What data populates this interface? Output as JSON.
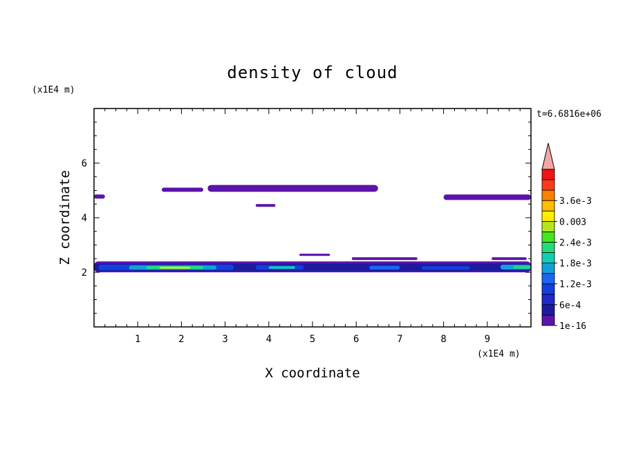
{
  "chart_data": {
    "type": "heatmap",
    "title": "density of cloud",
    "xlabel": "X coordinate",
    "ylabel": "Z coordinate",
    "x_unit": "(x1E4 m)",
    "y_unit": "(x1E4 m)",
    "time_label": "t=6.6816e+06",
    "xlim": [
      0,
      10
    ],
    "ylim": [
      0,
      8
    ],
    "x_ticks": [
      1,
      2,
      3,
      4,
      5,
      6,
      7,
      8,
      9
    ],
    "y_ticks": [
      2,
      4,
      6
    ],
    "grid": false,
    "colorbar": {
      "placement": "right",
      "extend": "max",
      "tick_labels": [
        "1e-16",
        "6e-4",
        "1.2e-3",
        "1.8e-3",
        "2.4e-3",
        "0.003",
        "3.6e-3"
      ],
      "tick_values": [
        1e-16,
        0.0006,
        0.0012,
        0.0018,
        0.0024,
        0.003,
        0.0036
      ],
      "levels": [
        1e-16,
        0.0003,
        0.0006,
        0.0009,
        0.0012,
        0.0015,
        0.0018,
        0.0021,
        0.0024,
        0.0027,
        0.003,
        0.0033,
        0.0036,
        0.0039
      ],
      "colors": [
        "#5a14aa",
        "#1e1aa0",
        "#1f2ac8",
        "#1240e0",
        "#1a66f0",
        "#12a0d8",
        "#12cfb4",
        "#22dc78",
        "#44e61c",
        "#b6e61a",
        "#ffee00",
        "#ffbe00",
        "#ff8000",
        "#ff3a1a",
        "#ee1515"
      ],
      "over_color": "#f4a6a6"
    },
    "regions": [
      {
        "x": [
          0.0,
          0.25
        ],
        "z": [
          4.7,
          4.85
        ],
        "level": 0
      },
      {
        "x": [
          1.55,
          2.5
        ],
        "z": [
          4.95,
          5.1
        ],
        "level": 0
      },
      {
        "x": [
          2.6,
          6.5
        ],
        "z": [
          4.95,
          5.2
        ],
        "level": 0
      },
      {
        "x": [
          3.7,
          4.15
        ],
        "z": [
          4.4,
          4.5
        ],
        "level": 0
      },
      {
        "x": [
          8.0,
          10.0
        ],
        "z": [
          4.65,
          4.85
        ],
        "level": 0
      },
      {
        "x": [
          4.7,
          5.4
        ],
        "z": [
          2.6,
          2.68
        ],
        "level": 0
      },
      {
        "x": [
          5.9,
          7.4
        ],
        "z": [
          2.45,
          2.55
        ],
        "level": 0
      },
      {
        "x": [
          9.1,
          9.9
        ],
        "z": [
          2.45,
          2.55
        ],
        "level": 0
      },
      {
        "x": [
          0.0,
          10.0
        ],
        "z": [
          2.0,
          2.4
        ],
        "level": 0
      },
      {
        "x": [
          0.0,
          10.0
        ],
        "z": [
          2.05,
          2.32
        ],
        "level": 1
      },
      {
        "x": [
          0.1,
          3.2
        ],
        "z": [
          2.08,
          2.28
        ],
        "level": 3
      },
      {
        "x": [
          0.8,
          2.8
        ],
        "z": [
          2.1,
          2.25
        ],
        "level": 5
      },
      {
        "x": [
          1.2,
          2.5
        ],
        "z": [
          2.12,
          2.23
        ],
        "level": 7
      },
      {
        "x": [
          1.5,
          2.2
        ],
        "z": [
          2.14,
          2.2
        ],
        "level": 10
      },
      {
        "x": [
          3.7,
          4.8
        ],
        "z": [
          2.1,
          2.26
        ],
        "level": 3
      },
      {
        "x": [
          4.0,
          4.6
        ],
        "z": [
          2.13,
          2.22
        ],
        "level": 6
      },
      {
        "x": [
          6.3,
          7.0
        ],
        "z": [
          2.1,
          2.24
        ],
        "level": 4
      },
      {
        "x": [
          7.5,
          8.6
        ],
        "z": [
          2.1,
          2.22
        ],
        "level": 3
      },
      {
        "x": [
          9.3,
          10.0
        ],
        "z": [
          2.1,
          2.28
        ],
        "level": 5
      },
      {
        "x": [
          9.6,
          10.0
        ],
        "z": [
          2.14,
          2.24
        ],
        "level": 7
      }
    ]
  }
}
